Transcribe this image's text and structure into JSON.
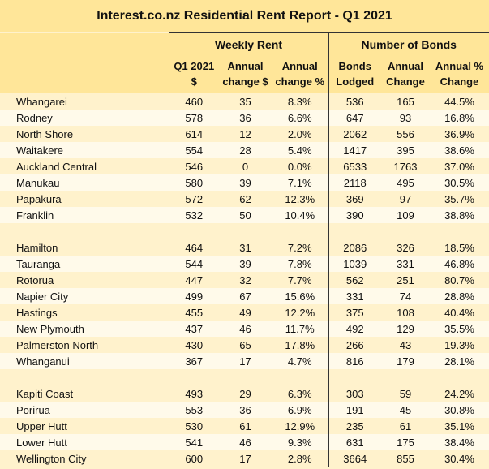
{
  "table": {
    "title": "Interest.co.nz Residential Rent Report - Q1 2021",
    "groups": [
      "Weekly Rent",
      "Number of Bonds"
    ],
    "subheaders": [
      [
        "Q1 2021",
        "$"
      ],
      [
        "Annual",
        "change $"
      ],
      [
        "Annual",
        "change %"
      ],
      [
        "Bonds",
        "Lodged"
      ],
      [
        "Annual",
        "Change"
      ],
      [
        "Annual %",
        "Change"
      ]
    ],
    "sections": [
      {
        "rows": [
          [
            "Whangarei",
            "460",
            "35",
            "8.3%",
            "536",
            "165",
            "44.5%"
          ],
          [
            "Rodney",
            "578",
            "36",
            "6.6%",
            "647",
            "93",
            "16.8%"
          ],
          [
            "North Shore",
            "614",
            "12",
            "2.0%",
            "2062",
            "556",
            "36.9%"
          ],
          [
            "Waitakere",
            "554",
            "28",
            "5.4%",
            "1417",
            "395",
            "38.6%"
          ],
          [
            "Auckland Central",
            "546",
            "0",
            "0.0%",
            "6533",
            "1763",
            "37.0%"
          ],
          [
            "Manukau",
            "580",
            "39",
            "7.1%",
            "2118",
            "495",
            "30.5%"
          ],
          [
            "Papakura",
            "572",
            "62",
            "12.3%",
            "369",
            "97",
            "35.7%"
          ],
          [
            "Franklin",
            "532",
            "50",
            "10.4%",
            "390",
            "109",
            "38.8%"
          ]
        ]
      },
      {
        "rows": [
          [
            "Hamilton",
            "464",
            "31",
            "7.2%",
            "2086",
            "326",
            "18.5%"
          ],
          [
            "Tauranga",
            "544",
            "39",
            "7.8%",
            "1039",
            "331",
            "46.8%"
          ],
          [
            "Rotorua",
            "447",
            "32",
            "7.7%",
            "562",
            "251",
            "80.7%"
          ],
          [
            "Napier City",
            "499",
            "67",
            "15.6%",
            "331",
            "74",
            "28.8%"
          ],
          [
            "Hastings",
            "455",
            "49",
            "12.2%",
            "375",
            "108",
            "40.4%"
          ],
          [
            "New Plymouth",
            "437",
            "46",
            "11.7%",
            "492",
            "129",
            "35.5%"
          ],
          [
            "Palmerston North",
            "430",
            "65",
            "17.8%",
            "266",
            "43",
            "19.3%"
          ],
          [
            "Whanganui",
            "367",
            "17",
            "4.7%",
            "816",
            "179",
            "28.1%"
          ]
        ]
      },
      {
        "rows": [
          [
            "Kapiti Coast",
            "493",
            "29",
            "6.3%",
            "303",
            "59",
            "24.2%"
          ],
          [
            "Porirua",
            "553",
            "36",
            "6.9%",
            "191",
            "45",
            "30.8%"
          ],
          [
            "Upper Hutt",
            "530",
            "61",
            "12.9%",
            "235",
            "61",
            "35.1%"
          ],
          [
            "Lower Hutt",
            "541",
            "46",
            "9.3%",
            "631",
            "175",
            "38.4%"
          ],
          [
            "Wellington City",
            "600",
            "17",
            "2.8%",
            "3664",
            "855",
            "30.4%"
          ]
        ]
      }
    ]
  }
}
